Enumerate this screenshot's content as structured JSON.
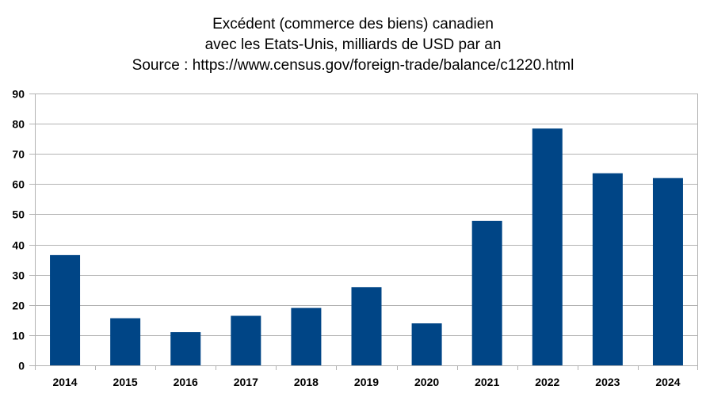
{
  "chart_data": {
    "type": "bar",
    "title_lines": [
      "Excédent (commerce des biens) canadien",
      "avec les Etats-Unis, milliards de USD par an",
      "Source : https://www.census.gov/foreign-trade/balance/c1220.html"
    ],
    "categories": [
      "2014",
      "2015",
      "2016",
      "2017",
      "2018",
      "2019",
      "2020",
      "2021",
      "2022",
      "2023",
      "2024"
    ],
    "values": [
      36.5,
      15.6,
      11.0,
      16.4,
      19.0,
      25.9,
      13.9,
      47.8,
      78.4,
      63.6,
      62.0
    ],
    "ylim": [
      0,
      90
    ],
    "yticks": [
      0,
      10,
      20,
      30,
      40,
      50,
      60,
      70,
      80,
      90
    ],
    "xlabel": "",
    "ylabel": "",
    "grid": true,
    "legend": "none",
    "bar_color": "#004586"
  }
}
